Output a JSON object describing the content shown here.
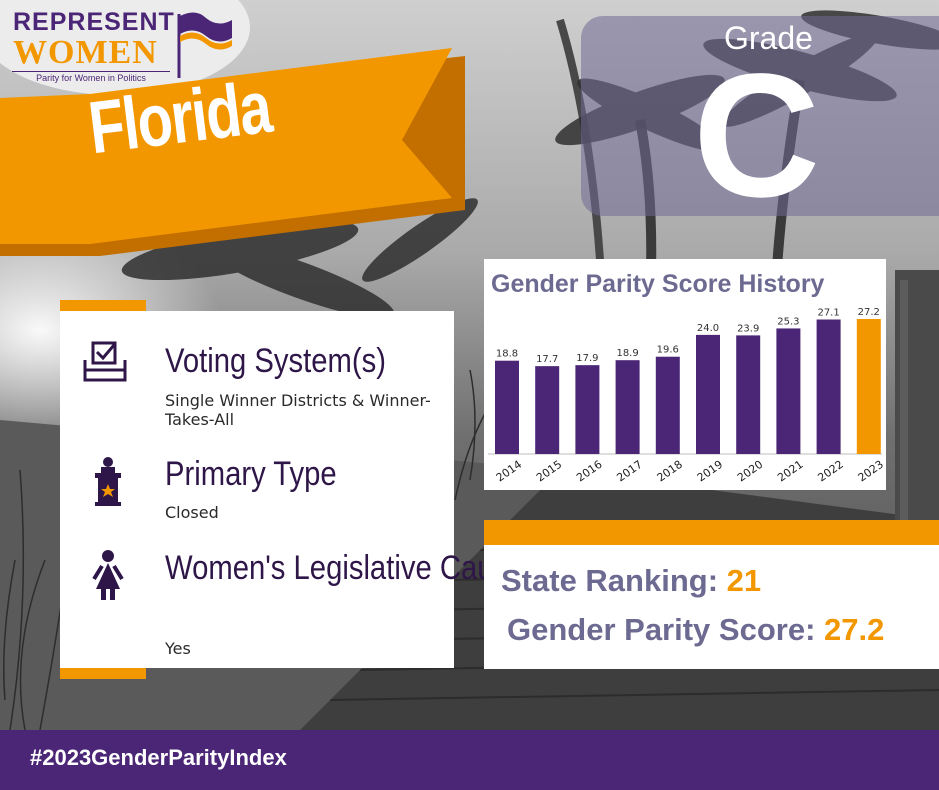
{
  "logo": {
    "line1": "REPRESENT",
    "line2": "WOMEN",
    "tagline": "Parity for Women in Politics"
  },
  "state": "Florida",
  "grade": {
    "label": "Grade",
    "letter": "C"
  },
  "info": [
    {
      "heading": "Voting System(s)",
      "sub": "Single Winner Districts & Winner-Takes-All",
      "icon": "ballot-box-icon"
    },
    {
      "heading": "Primary Type",
      "sub": "Closed",
      "icon": "podium-icon"
    },
    {
      "heading": "Women's Legislative Caucus?",
      "sub": "Yes",
      "icon": "woman-icon"
    }
  ],
  "summary": {
    "ranking_label": "State Ranking:",
    "ranking_value": "21",
    "score_label": "Gender Parity Score:",
    "score_value": "27.2"
  },
  "footer": {
    "hashtag": "#2023GenderParityIndex"
  },
  "colors": {
    "purple": "#4b2676",
    "orange": "#f39700",
    "slate": "#6d6a92"
  },
  "chart_data": {
    "type": "bar",
    "title": "Gender Parity Score History",
    "categories": [
      "2014",
      "2015",
      "2016",
      "2017",
      "2018",
      "2019",
      "2020",
      "2021",
      "2022",
      "2023"
    ],
    "values": [
      18.8,
      17.7,
      17.9,
      18.9,
      19.6,
      24.0,
      23.9,
      25.3,
      27.1,
      27.2
    ],
    "labels": [
      "18.8",
      "17.7",
      "17.9",
      "18.9",
      "19.6",
      "24.0",
      "23.9",
      "25.3",
      "27.1",
      "27.2"
    ],
    "highlight_index": 9,
    "bar_color": "#4b2676",
    "highlight_color": "#f39700",
    "grid": false
  }
}
